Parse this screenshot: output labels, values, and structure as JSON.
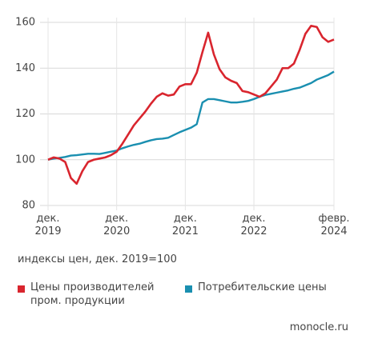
{
  "chart_data": {
    "type": "line",
    "x": [
      "2019-12",
      "2020-01",
      "2020-02",
      "2020-03",
      "2020-04",
      "2020-05",
      "2020-06",
      "2020-07",
      "2020-08",
      "2020-09",
      "2020-10",
      "2020-11",
      "2020-12",
      "2021-01",
      "2021-02",
      "2021-03",
      "2021-04",
      "2021-05",
      "2021-06",
      "2021-07",
      "2021-08",
      "2021-09",
      "2021-10",
      "2021-11",
      "2021-12",
      "2022-01",
      "2022-02",
      "2022-03",
      "2022-04",
      "2022-05",
      "2022-06",
      "2022-07",
      "2022-08",
      "2022-09",
      "2022-10",
      "2022-11",
      "2022-12",
      "2023-01",
      "2023-02",
      "2023-03",
      "2023-04",
      "2023-05",
      "2023-06",
      "2023-07",
      "2023-08",
      "2023-09",
      "2023-10",
      "2023-11",
      "2023-12",
      "2024-01",
      "2024-02"
    ],
    "series": [
      {
        "name": "Цены производителей пром. продукции",
        "color": "#d9252e",
        "values": [
          100,
          101,
          100.5,
          99,
          92,
          89.5,
          95,
          99,
          100,
          100.5,
          101,
          102,
          103.5,
          107,
          111,
          115,
          118,
          121,
          124.5,
          127.5,
          129,
          128,
          128.5,
          132,
          133,
          133,
          138,
          147,
          155.5,
          146,
          139.5,
          136,
          134.5,
          133.5,
          130,
          129.5,
          128.5,
          127.5,
          129,
          132,
          135,
          140,
          140,
          142,
          148,
          155,
          158.5,
          158,
          153.5,
          151.5,
          152.5
        ]
      },
      {
        "name": "Потребительские цены",
        "color": "#1a8fb0",
        "values": [
          100,
          100.5,
          100.8,
          101.2,
          101.8,
          102,
          102.3,
          102.6,
          102.6,
          102.5,
          103,
          103.5,
          104,
          105,
          105.8,
          106.5,
          107,
          107.8,
          108.5,
          109,
          109.2,
          109.6,
          110.8,
          112,
          113,
          114,
          115.5,
          125,
          126.5,
          126.5,
          126,
          125.5,
          125,
          125,
          125.3,
          125.7,
          126.5,
          127.5,
          128.3,
          128.8,
          129.3,
          129.8,
          130.3,
          131,
          131.5,
          132.5,
          133.5,
          135,
          136,
          137,
          138.5
        ]
      }
    ],
    "xlim": [
      "2019-12",
      "2024-02"
    ],
    "xticks": [
      {
        "value": "2019-12",
        "label": "дек. 2019"
      },
      {
        "value": "2020-12",
        "label": "дек. 2020"
      },
      {
        "value": "2021-12",
        "label": "дек. 2021"
      },
      {
        "value": "2022-12",
        "label": "дек. 2022"
      },
      {
        "value": "2024-02",
        "label": "февр. 2024"
      }
    ],
    "ylim": [
      80,
      160
    ],
    "yticks": [
      80,
      100,
      120,
      140,
      160
    ],
    "grid": true,
    "annotation": "индексы цен, дек. 2019=100",
    "source": "monocle.ru"
  }
}
